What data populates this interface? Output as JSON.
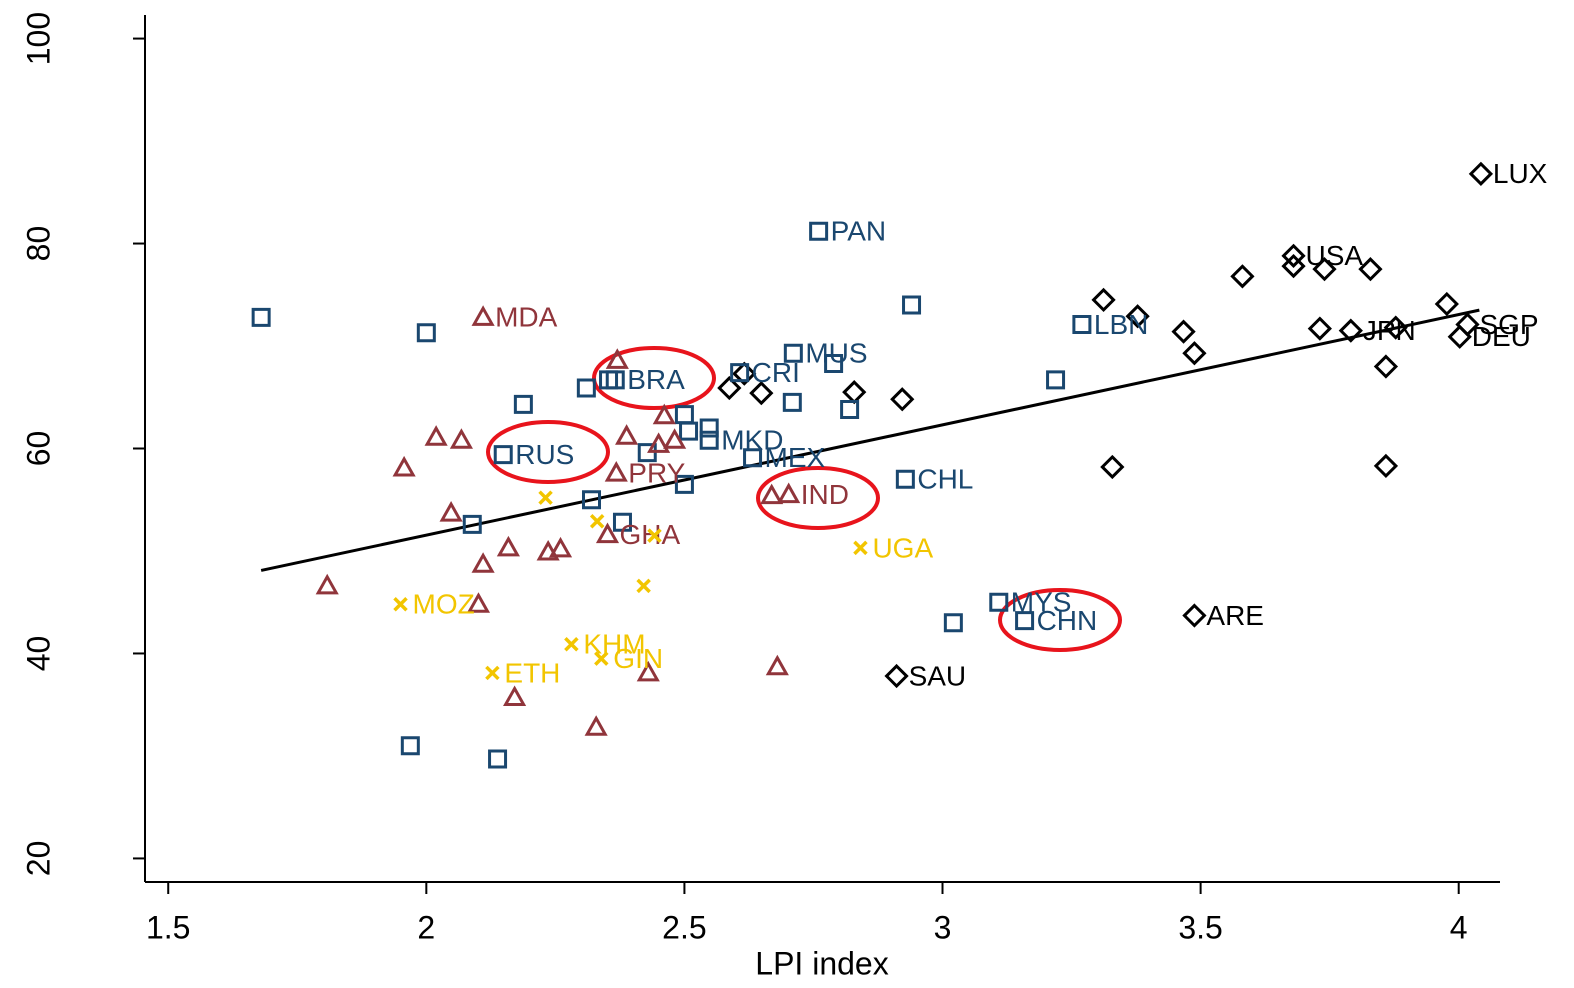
{
  "chart_data": {
    "type": "scatter",
    "xlabel": "LPI index",
    "xlim": [
      1.455,
      4.08
    ],
    "ylim": [
      17.7,
      102.3
    ],
    "xticks": [
      1.5,
      2,
      2.5,
      3,
      3.5,
      4
    ],
    "yticks": [
      20,
      40,
      60,
      80,
      100
    ],
    "series": [
      {
        "marker": "diamond",
        "color": "#000000",
        "x": [
          4.043,
          3.68,
          3.68,
          3.74,
          3.829,
          3.581,
          3.977,
          3.312,
          3.378,
          3.467,
          3.488,
          3.731,
          3.791,
          3.878,
          4.017,
          4.002,
          3.859,
          3.859,
          3.329,
          2.922,
          2.829,
          2.587,
          2.616,
          2.649,
          3.488,
          2.911
        ],
        "y": [
          86.8,
          78.8,
          77.8,
          77.5,
          77.5,
          76.8,
          74.1,
          74.5,
          72.9,
          71.4,
          69.3,
          71.7,
          71.5,
          71.8,
          72.1,
          70.9,
          68.0,
          58.3,
          58.2,
          64.8,
          65.5,
          65.9,
          67.3,
          65.4,
          43.7,
          37.8
        ],
        "labels": [
          "LUX",
          "USA",
          null,
          null,
          null,
          null,
          null,
          null,
          null,
          null,
          null,
          null,
          "JPN",
          null,
          "SGP",
          "DEU",
          null,
          null,
          null,
          null,
          null,
          null,
          null,
          null,
          "ARE",
          "SAU"
        ]
      },
      {
        "marker": "square",
        "color": "#1a476f",
        "x": [
          1.68,
          2.0,
          2.76,
          2.94,
          3.27,
          3.219,
          2.711,
          2.789,
          2.607,
          2.366,
          2.353,
          2.31,
          2.188,
          2.709,
          2.82,
          2.5,
          2.508,
          2.548,
          2.548,
          2.428,
          2.632,
          2.149,
          2.5,
          2.928,
          2.32,
          2.38,
          2.089,
          3.109,
          3.159,
          3.021,
          1.969,
          2.138
        ],
        "y": [
          72.8,
          71.3,
          81.2,
          74.0,
          72.1,
          66.7,
          69.3,
          68.3,
          67.4,
          66.7,
          66.7,
          65.9,
          64.3,
          64.5,
          63.8,
          63.3,
          61.7,
          62.0,
          60.8,
          59.6,
          59.1,
          59.4,
          56.5,
          57.0,
          55.0,
          52.8,
          52.6,
          45.0,
          43.2,
          43.0,
          31.0,
          29.7
        ],
        "labels": [
          null,
          null,
          "PAN",
          null,
          "LBN",
          null,
          "MUS",
          null,
          "CRI",
          "BRA",
          null,
          null,
          null,
          null,
          null,
          null,
          null,
          null,
          "MKD",
          null,
          "MEX",
          "RUS",
          null,
          "CHL",
          null,
          null,
          null,
          "MYS",
          "CHN",
          null,
          null,
          null
        ]
      },
      {
        "marker": "triangle",
        "color": "#90353b",
        "x": [
          2.11,
          2.37,
          2.461,
          2.388,
          2.45,
          2.481,
          2.019,
          2.068,
          1.957,
          2.368,
          2.669,
          2.702,
          2.048,
          2.351,
          2.159,
          2.26,
          2.236,
          2.11,
          1.808,
          2.101,
          2.43,
          2.68,
          2.171,
          2.329
        ],
        "y": [
          72.8,
          68.6,
          63.2,
          61.2,
          60.4,
          60.8,
          61.1,
          60.8,
          58.1,
          57.6,
          55.4,
          55.5,
          53.7,
          51.6,
          50.3,
          50.2,
          49.9,
          48.7,
          46.6,
          44.8,
          38.1,
          38.7,
          35.7,
          32.8
        ],
        "labels": [
          "MDA",
          null,
          null,
          null,
          null,
          null,
          null,
          null,
          null,
          "PRY",
          null,
          "IND",
          null,
          "GHA",
          null,
          null,
          null,
          null,
          null,
          null,
          null,
          null,
          null,
          null
        ]
      },
      {
        "marker": "x",
        "color": "#f2c500",
        "x": [
          2.231,
          2.331,
          2.442,
          2.841,
          2.421,
          1.95,
          2.281,
          2.339,
          2.128
        ],
        "y": [
          55.2,
          52.9,
          51.5,
          50.3,
          46.6,
          44.8,
          40.9,
          39.5,
          38.1
        ],
        "labels": [
          null,
          null,
          null,
          "UGA",
          null,
          "MOZ",
          "KHM",
          "GIN",
          "ETH"
        ]
      }
    ],
    "fit_line": {
      "color": "#000000",
      "x": [
        1.68,
        4.04
      ],
      "y": [
        48.1,
        73.5
      ]
    }
  }
}
